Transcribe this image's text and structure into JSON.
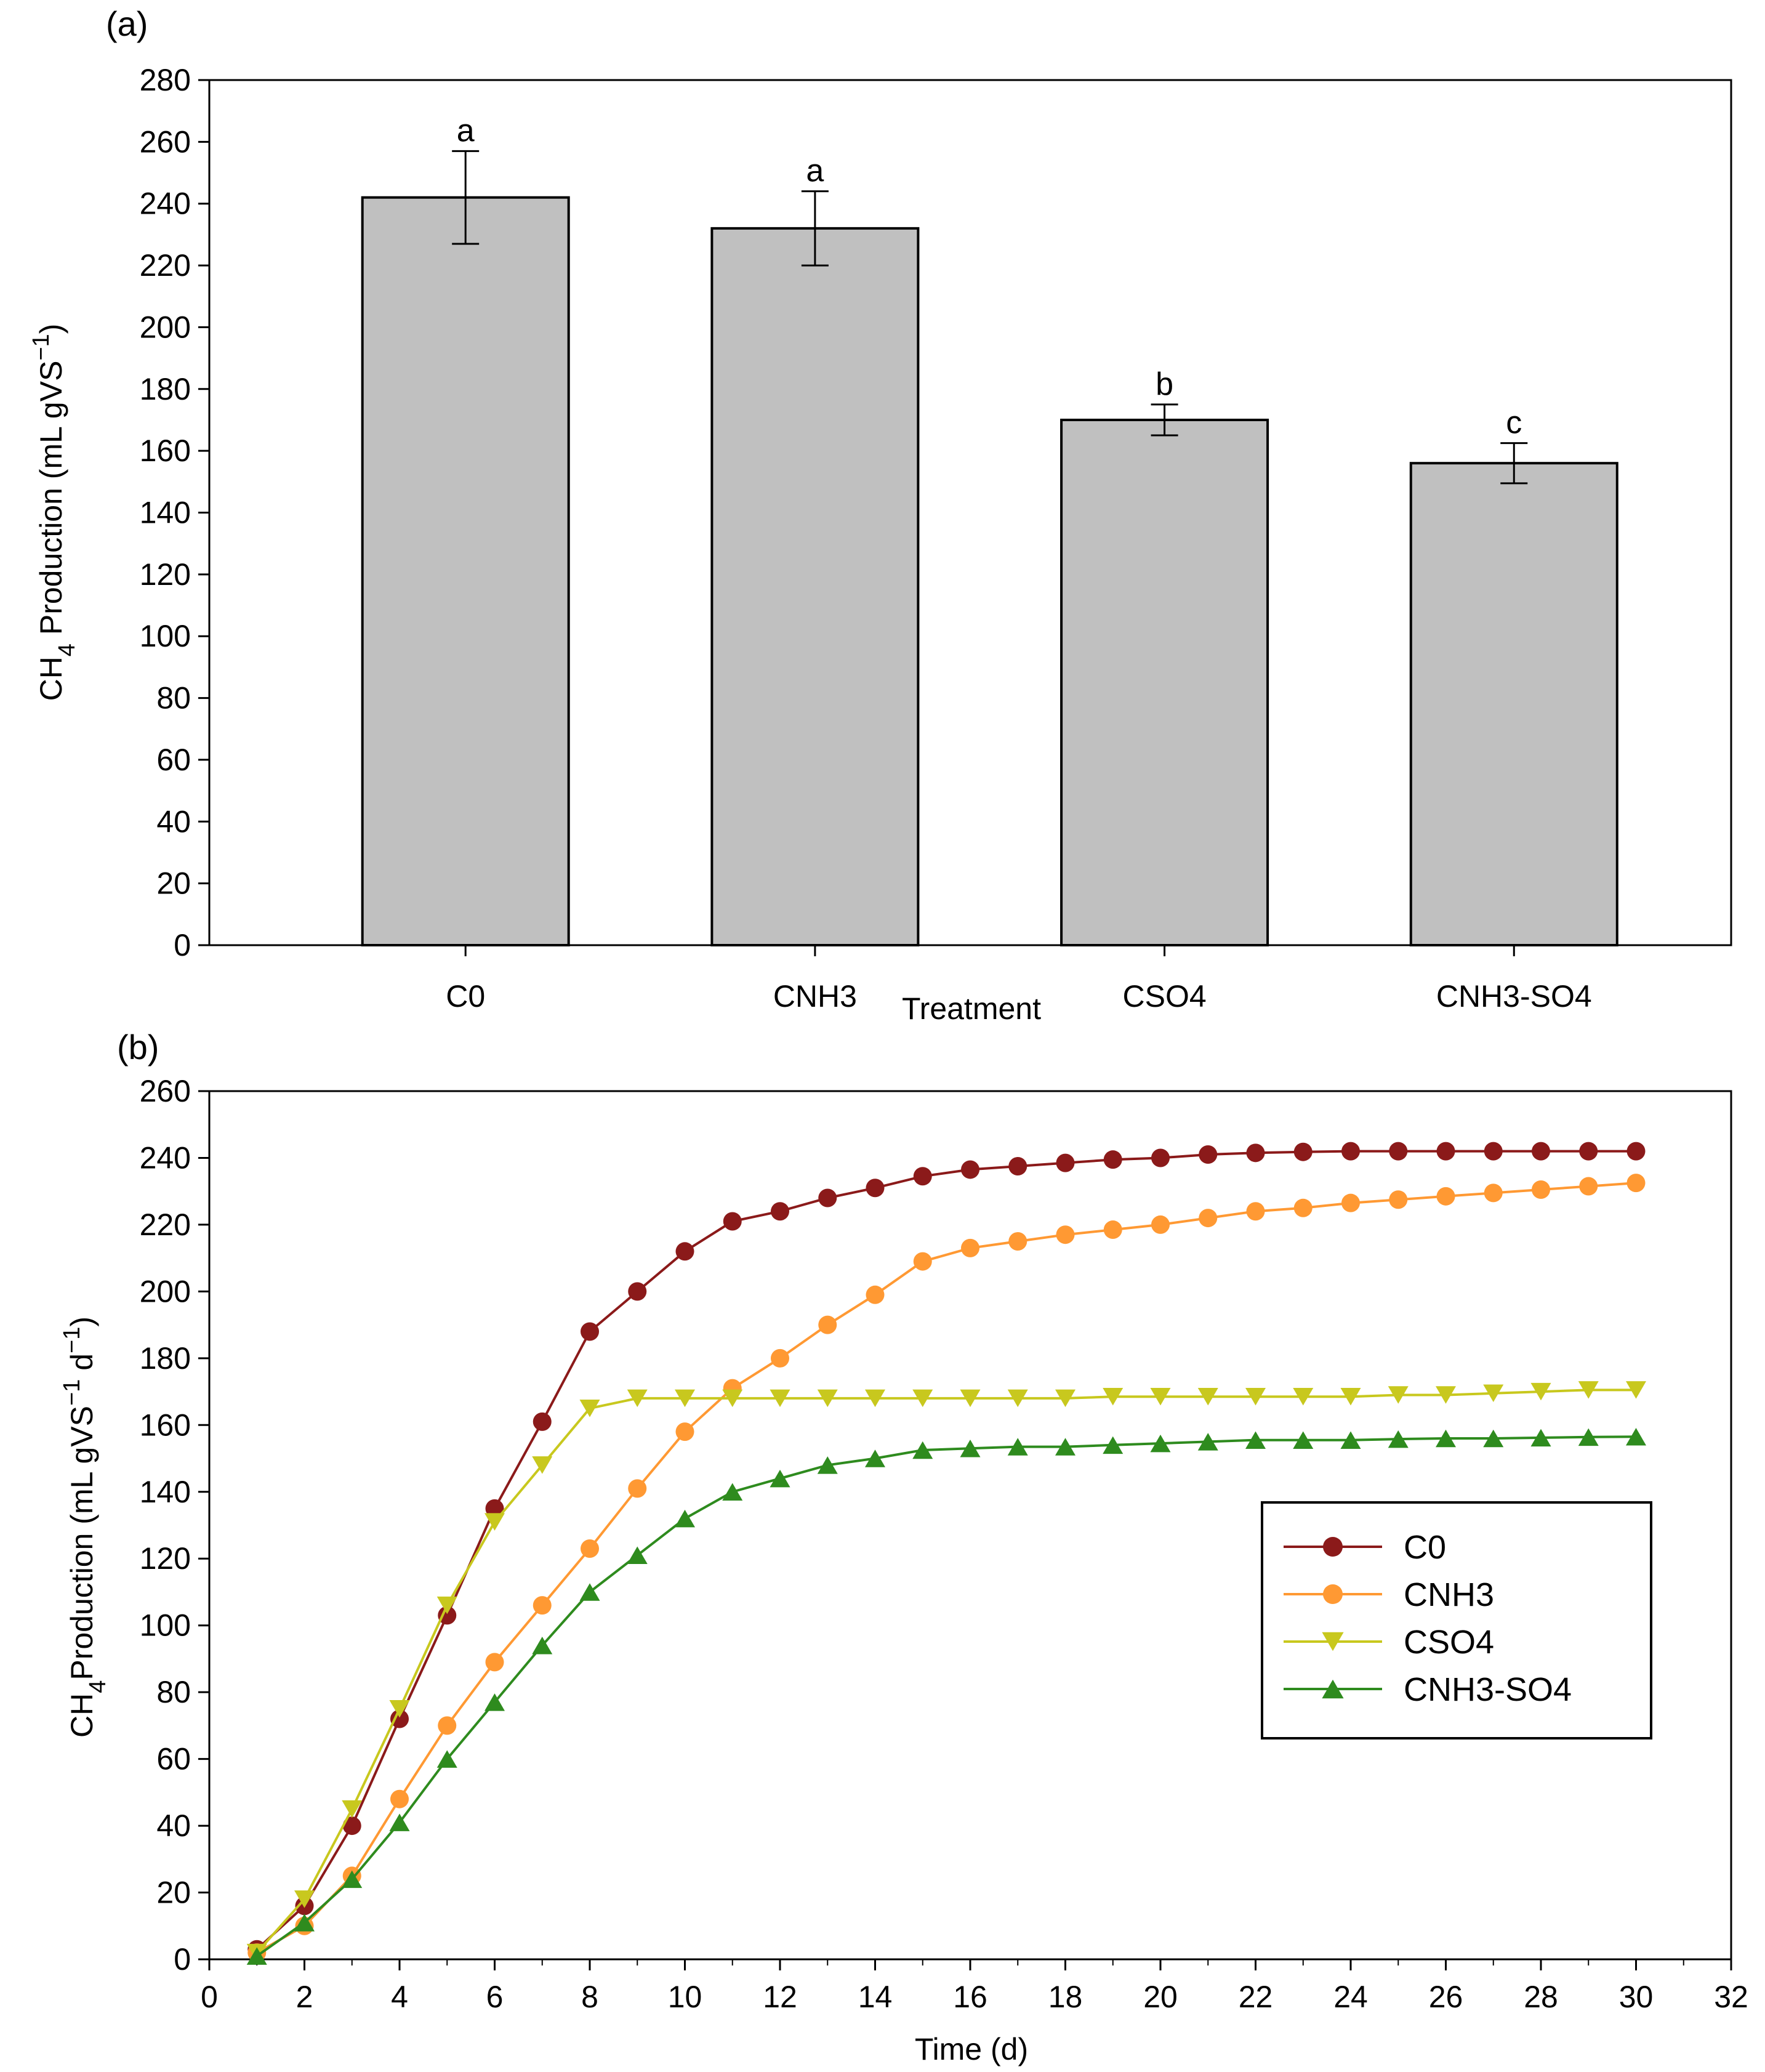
{
  "chart_data": [
    {
      "panel": "(a)",
      "type": "bar",
      "xlabel": "Treatment",
      "ylabel": "CH4 Production (mL gVS-1)",
      "ylabel_parts": {
        "main": "CH",
        "sub": "4",
        "rest": " Production (mL gVS",
        "sup": "−1",
        "close": ")"
      },
      "ylim": [
        0,
        280
      ],
      "yticks": [
        "0",
        "20",
        "40",
        "60",
        "80",
        "100",
        "120",
        "140",
        "160",
        "180",
        "200",
        "220",
        "240",
        "260",
        "280"
      ],
      "categories": [
        "C0",
        "CNH3",
        "CSO4",
        "CNH3-SO4"
      ],
      "values": [
        242,
        232,
        170,
        156
      ],
      "errors": [
        15,
        12,
        5,
        6.5
      ],
      "significance": [
        "a",
        "a",
        "b",
        "c"
      ],
      "bar_color": "#c0c0c0",
      "grid": false
    },
    {
      "panel": "(b)",
      "type": "line",
      "xlabel": "Time (d)",
      "ylabel": "CH4 Production (mL gVS-1 d-1)",
      "ylabel_parts": {
        "main": "CH",
        "sub": "4",
        "rest": "Production (mL gVS",
        "sup1": "−1",
        "mid": " d",
        "sup2": "−1",
        "close": ")"
      },
      "xlim": [
        0,
        32
      ],
      "ylim": [
        0,
        260
      ],
      "xticks": [
        "0",
        "2",
        "4",
        "6",
        "8",
        "10",
        "12",
        "14",
        "16",
        "18",
        "20",
        "22",
        "24",
        "26",
        "28",
        "30",
        "32"
      ],
      "yticks": [
        "0",
        "20",
        "40",
        "60",
        "80",
        "100",
        "120",
        "140",
        "160",
        "180",
        "200",
        "220",
        "240",
        "260"
      ],
      "x": [
        1,
        2,
        3,
        4,
        5,
        6,
        7,
        8,
        9,
        10,
        11,
        12,
        13,
        14,
        15,
        16,
        17,
        18,
        19,
        20,
        21,
        22,
        23,
        24,
        25,
        26,
        27,
        28,
        29,
        30
      ],
      "legend_position": "center-right",
      "series": [
        {
          "name": "C0",
          "color": "#8b1a1a",
          "marker": "circle",
          "values": [
            3,
            16,
            40,
            72,
            103,
            135,
            161,
            188,
            200,
            212,
            221,
            224,
            228,
            231,
            234.5,
            236.5,
            237.5,
            238.5,
            239.5,
            240,
            241,
            241.5,
            241.8,
            242,
            242,
            242,
            242,
            242,
            242,
            242
          ]
        },
        {
          "name": "CNH3",
          "color": "#ff9933",
          "marker": "circle",
          "values": [
            2,
            10,
            25,
            48,
            70,
            89,
            106,
            123,
            141,
            158,
            171,
            180,
            190,
            199,
            209,
            213,
            215,
            217,
            218.5,
            220,
            222,
            224,
            225,
            226.5,
            227.5,
            228.5,
            229.5,
            230.5,
            231.5,
            232.5
          ]
        },
        {
          "name": "CSO4",
          "color": "#c8c81e",
          "marker": "triangle-down",
          "values": [
            2,
            18,
            45,
            75,
            106,
            131,
            148,
            165,
            168,
            168,
            168,
            168,
            168,
            168,
            168,
            168,
            168,
            168,
            168.5,
            168.5,
            168.5,
            168.5,
            168.5,
            168.5,
            169,
            169,
            169.5,
            170,
            170.5,
            170.5
          ]
        },
        {
          "name": "CNH3-SO4",
          "color": "#2e8b1e",
          "marker": "triangle-up",
          "values": [
            1,
            11,
            24,
            41,
            60,
            77,
            94,
            110,
            121,
            132,
            140,
            144,
            148,
            150,
            152.5,
            153,
            153.5,
            153.5,
            154,
            154.5,
            155,
            155.5,
            155.5,
            155.5,
            155.8,
            156,
            156,
            156.2,
            156.4,
            156.5
          ]
        }
      ]
    }
  ]
}
